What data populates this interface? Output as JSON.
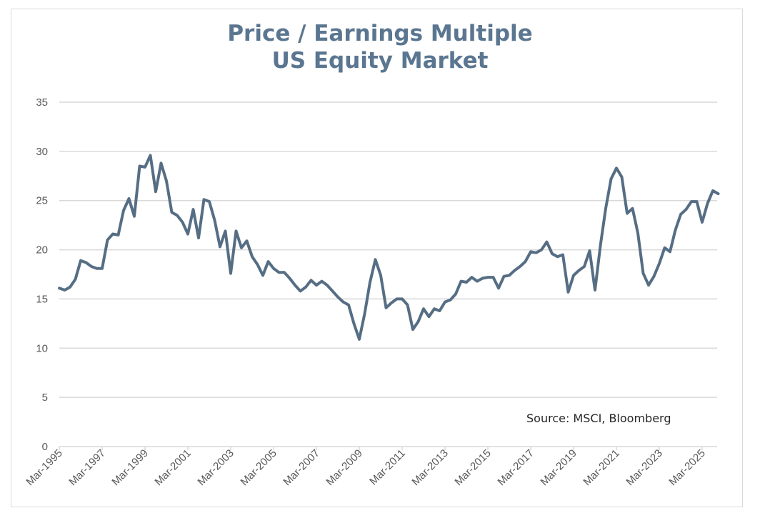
{
  "chart_data": {
    "type": "line",
    "title": "Price / Earnings Multiple",
    "subtitle": "US Equity Market",
    "xlabel": "",
    "ylabel": "",
    "ylim": [
      0,
      35
    ],
    "yticks": [
      0,
      5,
      10,
      15,
      20,
      25,
      30,
      35
    ],
    "grid": true,
    "legend": "none",
    "annotation": "Source: MSCI, Bloomberg",
    "x_start": "Mar-1995",
    "x_frequency": "quarterly",
    "x_tick_labels": [
      "Mar-1995",
      "Mar-1997",
      "Mar-1999",
      "Mar-2001",
      "Mar-2003",
      "Mar-2005",
      "Mar-2007",
      "Mar-2009",
      "Mar-2011",
      "Mar-2013",
      "Mar-2015",
      "Mar-2017",
      "Mar-2019",
      "Mar-2021",
      "Mar-2023",
      "Mar-2025"
    ],
    "line_color": "#566e84",
    "series": [
      {
        "name": "P/E Multiple",
        "values": [
          16.1,
          15.9,
          16.2,
          17.0,
          18.9,
          18.7,
          18.3,
          18.1,
          18.1,
          21.0,
          21.6,
          21.5,
          24.0,
          25.2,
          23.4,
          28.5,
          28.4,
          29.6,
          25.9,
          28.8,
          27.0,
          23.8,
          23.5,
          22.8,
          21.6,
          24.1,
          21.2,
          25.1,
          24.9,
          23.0,
          20.3,
          21.9,
          17.6,
          21.9,
          20.2,
          20.9,
          19.3,
          18.5,
          17.4,
          18.8,
          18.1,
          17.7,
          17.7,
          17.1,
          16.4,
          15.8,
          16.2,
          16.9,
          16.4,
          16.8,
          16.4,
          15.8,
          15.2,
          14.7,
          14.4,
          12.5,
          10.9,
          13.5,
          16.7,
          19.0,
          17.4,
          14.1,
          14.6,
          15.0,
          15.0,
          14.4,
          11.9,
          12.7,
          14.0,
          13.2,
          14.0,
          13.8,
          14.7,
          14.9,
          15.5,
          16.8,
          16.7,
          17.2,
          16.8,
          17.1,
          17.2,
          17.2,
          16.1,
          17.3,
          17.4,
          17.9,
          18.3,
          18.8,
          19.8,
          19.7,
          20.0,
          20.8,
          19.6,
          19.3,
          19.5,
          15.7,
          17.4,
          17.9,
          18.3,
          19.9,
          15.9,
          20.4,
          24.2,
          27.2,
          28.3,
          27.4,
          23.7,
          24.2,
          21.7,
          17.6,
          16.4,
          17.3,
          18.6,
          20.2,
          19.8,
          22.0,
          23.6,
          24.1,
          24.9,
          24.9,
          22.8,
          24.7,
          26.0,
          25.7
        ]
      }
    ]
  }
}
